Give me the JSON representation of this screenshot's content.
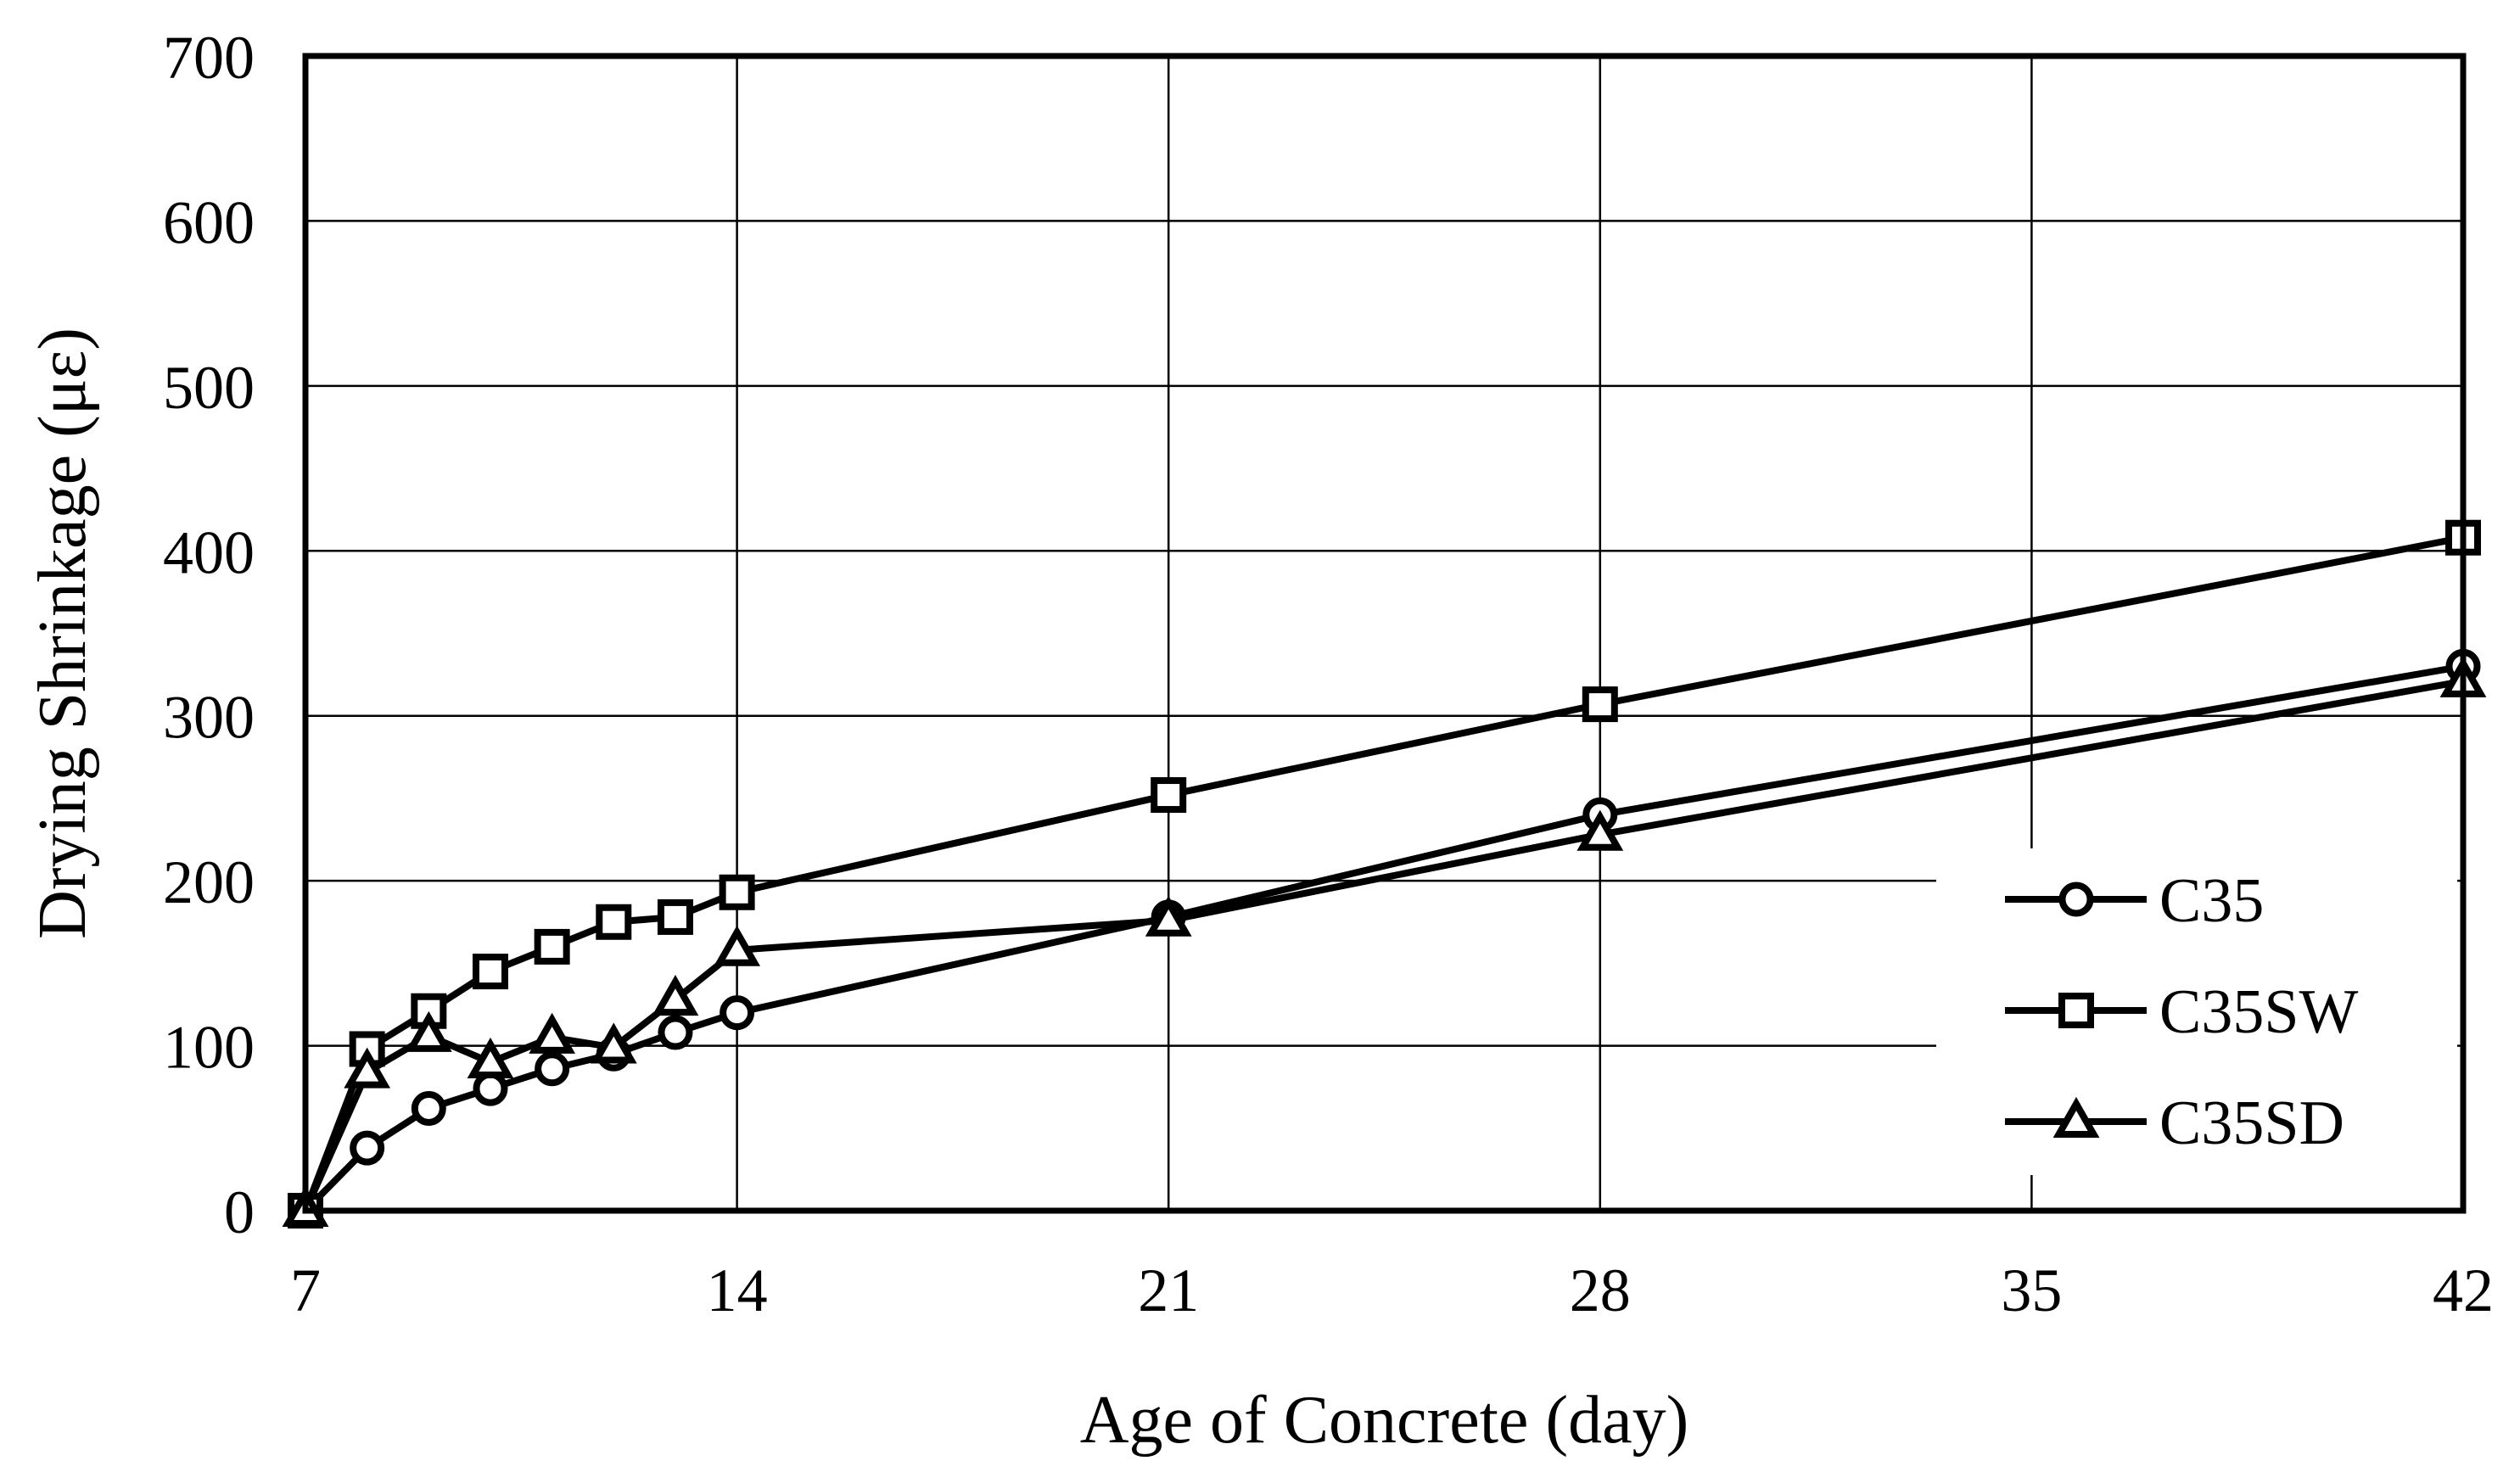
{
  "figure": {
    "xlabel": "Age of Concrete (day)",
    "ylabel": "Drying Shrinkage (με)"
  },
  "chart_data": {
    "type": "line",
    "x": [
      7,
      8,
      9,
      10,
      11,
      12,
      13,
      14,
      21,
      28,
      42
    ],
    "series": [
      {
        "name": "C35",
        "marker": "circle",
        "values": [
          0,
          38,
          62,
          74,
          86,
          95,
          108,
          120,
          178,
          240,
          330
        ]
      },
      {
        "name": "C35SW",
        "marker": "square",
        "values": [
          0,
          98,
          121,
          145,
          160,
          175,
          178,
          193,
          252,
          307,
          408
        ]
      },
      {
        "name": "C35SD",
        "marker": "triangle",
        "values": [
          0,
          84,
          106,
          90,
          105,
          99,
          128,
          158,
          176,
          228,
          321
        ]
      }
    ],
    "xlabel": "Age of Concrete (day)",
    "ylabel": "Drying Shrinkage (με)",
    "xlim": [
      7,
      42
    ],
    "ylim": [
      0,
      700
    ],
    "xticks": [
      7,
      14,
      21,
      28,
      35,
      42
    ],
    "yticks": [
      0,
      100,
      200,
      300,
      400,
      500,
      600,
      700
    ],
    "grid": true,
    "legend_position": "inside-right",
    "line_color": "#000000",
    "background_color": "#ffffff"
  }
}
